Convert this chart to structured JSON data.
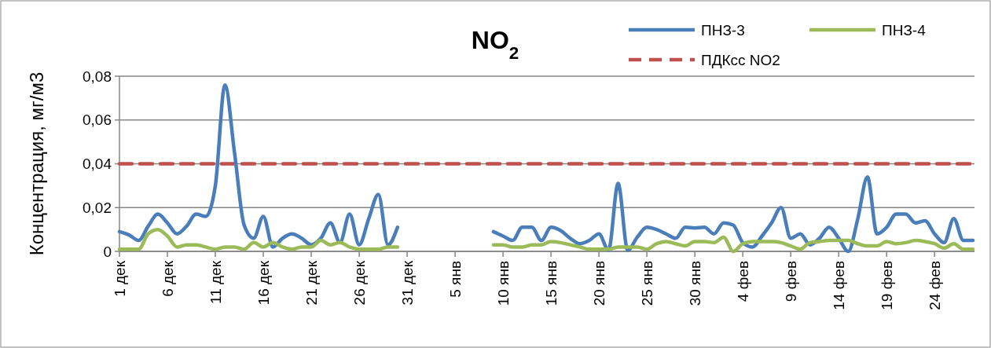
{
  "chart_data": {
    "type": "line",
    "title": "NO$_{2}$",
    "ylabel": "Концентрация, мг/м3",
    "categories": [
      "1 дек",
      null,
      null,
      null,
      null,
      "6 дек",
      null,
      null,
      null,
      null,
      "11 дек",
      null,
      null,
      null,
      null,
      "16 дек",
      null,
      null,
      null,
      null,
      "21 дек",
      null,
      null,
      null,
      null,
      "26 дек",
      null,
      null,
      null,
      null,
      "31 дек",
      null,
      null,
      null,
      null,
      "5 янв",
      null,
      null,
      null,
      null,
      "10 янв",
      null,
      null,
      null,
      null,
      "15 янв",
      null,
      null,
      null,
      null,
      "20 янв",
      null,
      null,
      null,
      null,
      "25 янв",
      null,
      null,
      null,
      null,
      "30 янв",
      null,
      null,
      null,
      null,
      "4 фев",
      null,
      null,
      null,
      null,
      "9 фев",
      null,
      null,
      null,
      null,
      "14 фев",
      null,
      null,
      null,
      null,
      "19 фев",
      null,
      null,
      null,
      null,
      "24 фев",
      null,
      null,
      null,
      null
    ],
    "series": [
      {
        "name": "ПНЗ-3",
        "color": "#4a7ebb",
        "values": [
          0.009,
          0.0075,
          0.005,
          0.0115,
          0.017,
          0.013,
          0.008,
          0.0115,
          0.017,
          0.016,
          0.03,
          0.076,
          0.045,
          0.012,
          0.006,
          0.016,
          0.002,
          0.006,
          0.008,
          0.006,
          0.003,
          0.006,
          0.013,
          0.004,
          0.017,
          0.003,
          0.015,
          0.026,
          0.003,
          0.011,
          null,
          null,
          null,
          null,
          null,
          null,
          null,
          null,
          null,
          0.009,
          0.007,
          0.005,
          0.011,
          0.011,
          0.005,
          0.011,
          0.0095,
          0.006,
          0.0035,
          0.005,
          0.008,
          0.0005,
          0.031,
          0.0005,
          0.0065,
          0.011,
          0.01,
          0.008,
          0.006,
          0.011,
          0.0107,
          0.011,
          0.008,
          0.013,
          0.012,
          0.004,
          0.002,
          0.007,
          0.013,
          0.02,
          0.006,
          0.008,
          0.003,
          0.006,
          0.011,
          0.006,
          0,
          0.015,
          0.034,
          0.008,
          0.011,
          0.017,
          0.017,
          0.013,
          0.014,
          0.008,
          0.004,
          0.015,
          0.005,
          0.005
        ]
      },
      {
        "name": "ПНЗ-4",
        "color": "#9bbb59",
        "values": [
          0.001,
          0.001,
          0.001,
          0.008,
          0.01,
          0.007,
          0.002,
          0.003,
          0.003,
          0.002,
          0.001,
          0.002,
          0.002,
          0.001,
          0.004,
          0.002,
          0.004,
          0.002,
          0.001,
          0.002,
          0.002,
          0.005,
          0.003,
          0.004,
          0.002,
          0.001,
          0.001,
          0.001,
          0.002,
          0.002,
          null,
          null,
          null,
          null,
          null,
          null,
          null,
          null,
          null,
          0.003,
          0.003,
          0.002,
          0.002,
          0.003,
          0.003,
          0.0045,
          0.004,
          0.003,
          0.002,
          0.001,
          0.001,
          0.001,
          0.002,
          0.002,
          0.002,
          0.001,
          0.0035,
          0.0045,
          0.0035,
          0.0025,
          0.0045,
          0.0045,
          0.004,
          0.0065,
          0,
          0.0035,
          0.0045,
          0.0045,
          0.0045,
          0.004,
          0.0025,
          0.001,
          0.004,
          0.0045,
          0.005,
          0.005,
          0.005,
          0.0035,
          0.0025,
          0.0025,
          0.0045,
          0.0035,
          0.004,
          0.005,
          0.0045,
          0.0035,
          0.0015,
          0.0035,
          0.001,
          0.001
        ]
      }
    ],
    "ref_lines": [
      {
        "axis": "y",
        "value": 0.04,
        "label": "ПДКсс NO2",
        "color": "#c0504d",
        "line_style": "dashed"
      }
    ],
    "ylim": [
      0,
      0.08
    ],
    "yticks": [
      {
        "value": 0,
        "label": "0"
      },
      {
        "value": 0.02,
        "label": "0,02"
      },
      {
        "value": 0.04,
        "label": "0,04"
      },
      {
        "value": 0.06,
        "label": "0,06"
      },
      {
        "value": 0.08,
        "label": "0,08"
      }
    ],
    "grid": "y",
    "legend": "top right",
    "marker": "none",
    "line_style": "solid"
  }
}
